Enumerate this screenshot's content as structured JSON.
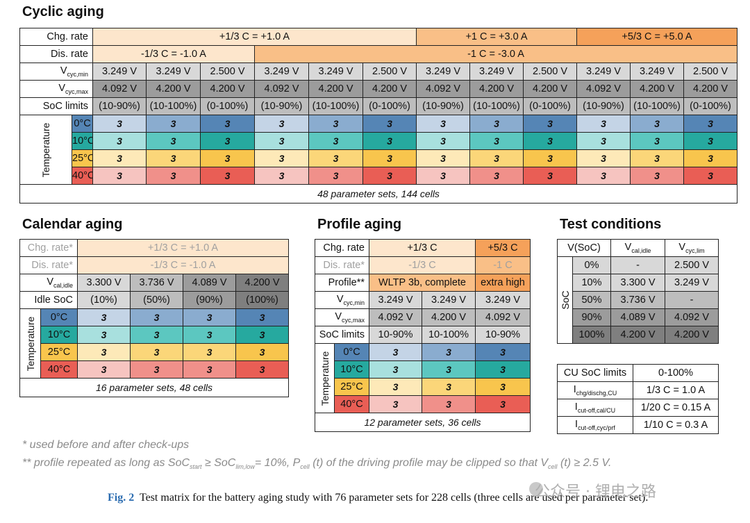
{
  "cyclic": {
    "title": "Cyclic aging",
    "row_labels": {
      "chg": "Chg. rate",
      "dis": "Dis. rate",
      "vmin_v": "V",
      "vmin_sub": "cyc,min",
      "vmax_v": "V",
      "vmax_sub": "cyc,max",
      "soc": "SoC limits",
      "temperature": "Temperature"
    },
    "chg_rates": [
      "+1/3 C = +1.0 A",
      "+1 C = +3.0 A",
      "+5/3 C = +5.0 A"
    ],
    "dis_rates": [
      "-1/3 C = -1.0 A",
      "-1 C = -3.0 A"
    ],
    "vmin": [
      "3.249 V",
      "3.249 V",
      "2.500 V",
      "3.249 V",
      "3.249 V",
      "2.500 V",
      "3.249 V",
      "3.249 V",
      "2.500 V",
      "3.249 V",
      "3.249 V",
      "2.500 V"
    ],
    "vmax": [
      "4.092 V",
      "4.200 V",
      "4.200 V",
      "4.092 V",
      "4.200 V",
      "4.200 V",
      "4.092 V",
      "4.200 V",
      "4.200 V",
      "4.092 V",
      "4.200 V",
      "4.200 V"
    ],
    "soc": [
      "(10-90%)",
      "(10-100%)",
      "(0-100%)",
      "(10-90%)",
      "(10-100%)",
      "(0-100%)",
      "(10-90%)",
      "(10-100%)",
      "(0-100%)",
      "(10-90%)",
      "(10-100%)",
      "(0-100%)"
    ],
    "temps": [
      "0°C",
      "10°C",
      "25°C",
      "40°C"
    ],
    "cell_value": "3",
    "footer": "48 parameter sets, 144 cells"
  },
  "calendar": {
    "title": "Calendar aging",
    "chg_label": "Chg. rate*",
    "chg": "+1/3 C = +1.0 A",
    "dis_label": "Dis. rate*",
    "dis": "-1/3 C = -1.0 A",
    "vcal_v": "V",
    "vcal_sub": "cal,idle",
    "vcal": [
      "3.300 V",
      "3.736 V",
      "4.089 V",
      "4.200 V"
    ],
    "idle_label": "Idle SoC",
    "idle": [
      "(10%)",
      "(50%)",
      "(90%)",
      "(100%)"
    ],
    "temperature": "Temperature",
    "temps": [
      "0°C",
      "10°C",
      "25°C",
      "40°C"
    ],
    "cell_value": "3",
    "footer": "16 parameter sets, 48 cells"
  },
  "profile": {
    "title": "Profile aging",
    "chg_label": "Chg. rate",
    "chg": [
      "+1/3 C",
      "+5/3 C"
    ],
    "dis_label": "Dis. rate*",
    "dis": [
      "-1/3 C",
      "-1 C"
    ],
    "prof_label": "Profile**",
    "prof": [
      "WLTP 3b, complete",
      "extra high"
    ],
    "vmin_v": "V",
    "vmin_sub": "cyc,min",
    "vmin": [
      "3.249 V",
      "3.249 V",
      "3.249 V"
    ],
    "vmax_v": "V",
    "vmax_sub": "cyc,max",
    "vmax": [
      "4.092 V",
      "4.200 V",
      "4.092 V"
    ],
    "soc_label": "SoC limits",
    "soc": [
      "10-90%",
      "10-100%",
      "10-90%"
    ],
    "temperature": "Temperature",
    "temps": [
      "0°C",
      "10°C",
      "25°C",
      "40°C"
    ],
    "cell_value": "3",
    "footer": "12 parameter sets, 36 cells"
  },
  "conditions": {
    "title": "Test conditions",
    "h_vsoc": "V(SoC)",
    "h_vcal_v": "V",
    "h_vcal_sub": "cal,idle",
    "h_vcyc_v": "V",
    "h_vcyc_sub": "cyc,lim",
    "soc_axis": "SoC",
    "rows": [
      [
        "0%",
        "-",
        "2.500 V"
      ],
      [
        "10%",
        "3.300 V",
        "3.249 V"
      ],
      [
        "50%",
        "3.736 V",
        "-"
      ],
      [
        "90%",
        "4.089 V",
        "4.092 V"
      ],
      [
        "100%",
        "4.200 V",
        "4.200 V"
      ]
    ],
    "cu": {
      "soc_label": "CU SoC limits",
      "soc_val": "0-100%",
      "i1_sub": "chg/dischg,CU",
      "i1_val": "1/3 C = 1.0 A",
      "i2_sub": "cut-off,cal/CU",
      "i2_val": "1/20 C = 0.15 A",
      "i3_sub": "cut-off,cyc/prf",
      "i3_val": "1/10 C = 0.3 A",
      "i_letter": "I"
    }
  },
  "footnotes": {
    "one": "* used before and after check-ups",
    "two": "** profile repeated as long as SoC",
    "two_start": "start",
    "two_mid": " ≥ SoC",
    "two_lim": "lim,low",
    "two_mid2": "= 10%, P",
    "two_cell": "cell",
    "two_mid3": " (t) of the driving profile may be clipped so that V",
    "two_cell2": "cell",
    "two_end": " (t) ≥ 2.5 V."
  },
  "caption": {
    "label": "Fig. 2",
    "text": "Test matrix for the battery aging study with 76 parameter sets for 228 cells (three cells are used per parameter set)."
  },
  "watermark": "公众号 · 锂电之路"
}
